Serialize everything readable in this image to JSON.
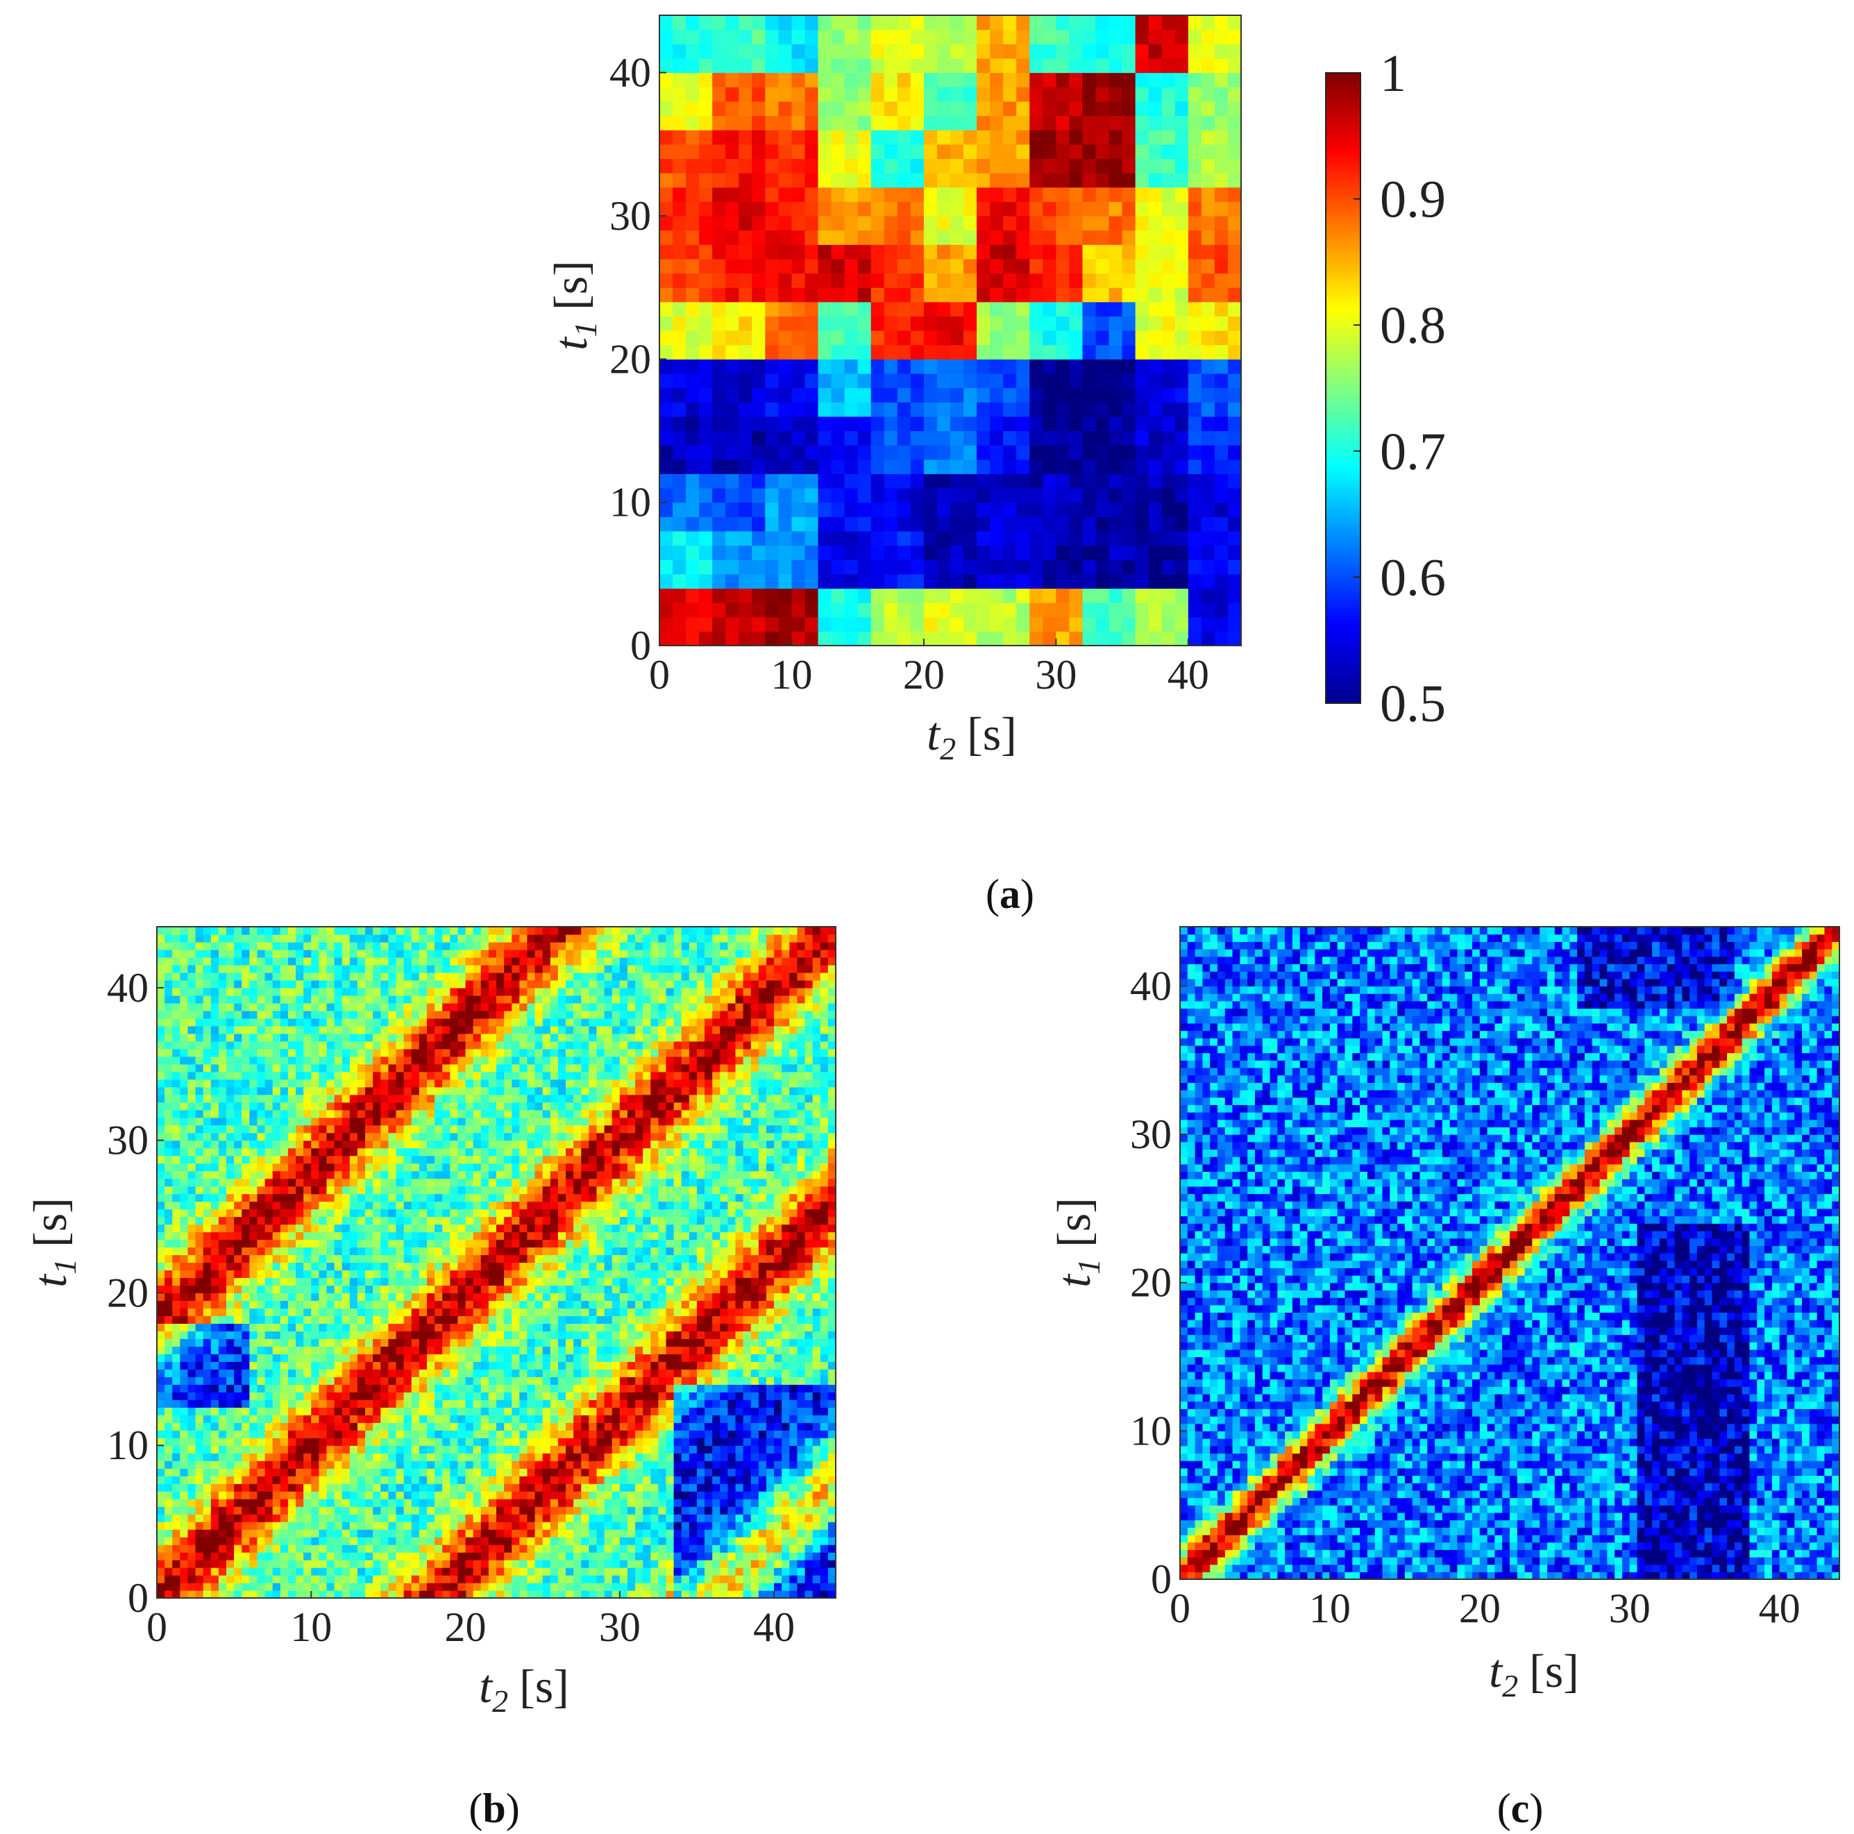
{
  "figure": {
    "panel_labels": [
      {
        "open": "(",
        "letter": "a",
        "close": ")"
      },
      {
        "open": "(",
        "letter": "b",
        "close": ")"
      },
      {
        "open": "(",
        "letter": "c",
        "close": ")"
      }
    ]
  },
  "chart_data": [
    {
      "panel": "a",
      "type": "heatmap",
      "x_axis": {
        "var": "t",
        "sub": "2",
        "unit": "[s]",
        "ticks": [
          "0",
          "10",
          "20",
          "30",
          "40"
        ],
        "range": [
          0,
          44
        ]
      },
      "y_axis": {
        "var": "t",
        "sub": "1",
        "unit": "[s]",
        "ticks": [
          "0",
          "10",
          "20",
          "30",
          "40"
        ],
        "range": [
          0,
          44
        ]
      },
      "colorbar": {
        "ticks": [
          "1",
          "0.9",
          "0.8",
          "0.7",
          "0.6",
          "0.5"
        ],
        "range": [
          0.5,
          1.0
        ],
        "colormap": "jet"
      },
      "grid_step_s": 4,
      "description_matrix_rows_bottom_to_top": [
        [
          0.95,
          0.97,
          0.98,
          0.7,
          0.78,
          0.8,
          0.78,
          0.86,
          0.72,
          0.77,
          0.55
        ],
        [
          0.68,
          0.64,
          0.63,
          0.55,
          0.57,
          0.53,
          0.55,
          0.52,
          0.52,
          0.51,
          0.56
        ],
        [
          0.62,
          0.6,
          0.64,
          0.57,
          0.55,
          0.53,
          0.54,
          0.53,
          0.52,
          0.52,
          0.55
        ],
        [
          0.53,
          0.52,
          0.54,
          0.56,
          0.6,
          0.62,
          0.57,
          0.51,
          0.51,
          0.54,
          0.58
        ],
        [
          0.55,
          0.54,
          0.56,
          0.66,
          0.6,
          0.62,
          0.6,
          0.5,
          0.5,
          0.55,
          0.6
        ],
        [
          0.8,
          0.82,
          0.88,
          0.72,
          0.92,
          0.94,
          0.76,
          0.7,
          0.6,
          0.8,
          0.82
        ],
        [
          0.9,
          0.93,
          0.94,
          0.96,
          0.92,
          0.86,
          0.96,
          0.92,
          0.84,
          0.8,
          0.9
        ],
        [
          0.92,
          0.95,
          0.93,
          0.86,
          0.88,
          0.8,
          0.94,
          0.9,
          0.88,
          0.8,
          0.88
        ],
        [
          0.9,
          0.93,
          0.92,
          0.8,
          0.7,
          0.85,
          0.86,
          0.99,
          0.99,
          0.72,
          0.78
        ],
        [
          0.8,
          0.9,
          0.88,
          0.76,
          0.82,
          0.72,
          0.86,
          0.97,
          0.99,
          0.7,
          0.76
        ],
        [
          0.7,
          0.72,
          0.68,
          0.76,
          0.8,
          0.78,
          0.85,
          0.72,
          0.7,
          0.96,
          0.8
        ]
      ]
    },
    {
      "panel": "b",
      "type": "heatmap",
      "x_axis": {
        "var": "t",
        "sub": "2",
        "unit": "[s]",
        "ticks": [
          "0",
          "10",
          "20",
          "30",
          "40"
        ],
        "range": [
          0,
          44
        ]
      },
      "y_axis": {
        "var": "t",
        "sub": "1",
        "unit": "[s]",
        "ticks": [
          "0",
          "10",
          "20",
          "30",
          "40"
        ],
        "range": [
          0,
          44
        ]
      },
      "colormap": "jet",
      "range": [
        0.5,
        1.0
      ]
    },
    {
      "panel": "c",
      "type": "heatmap",
      "x_axis": {
        "var": "t",
        "sub": "2",
        "unit": "[s]",
        "ticks": [
          "0",
          "10",
          "20",
          "30",
          "40"
        ],
        "range": [
          0,
          44
        ]
      },
      "y_axis": {
        "var": "t",
        "sub": "1",
        "unit": "[s]",
        "ticks": [
          "0",
          "10",
          "20",
          "30",
          "40"
        ],
        "range": [
          0,
          44
        ]
      },
      "colormap": "jet",
      "range": [
        0.5,
        1.0
      ]
    }
  ]
}
